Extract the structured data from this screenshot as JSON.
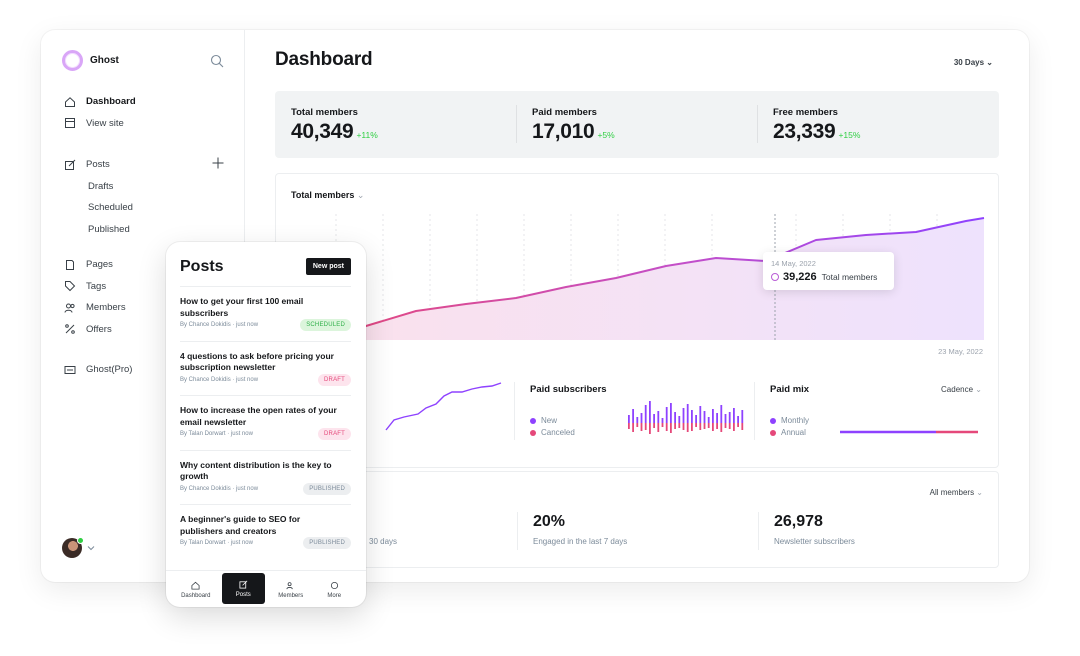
{
  "sidebar": {
    "brand": "Ghost",
    "items": [
      {
        "label": "Dashboard",
        "icon": "home-icon"
      },
      {
        "label": "View site",
        "icon": "window-icon"
      },
      {
        "label": "Posts",
        "icon": "edit-icon"
      },
      {
        "label": "Drafts"
      },
      {
        "label": "Scheduled"
      },
      {
        "label": "Published"
      },
      {
        "label": "Pages",
        "icon": "page-icon"
      },
      {
        "label": "Tags",
        "icon": "tag-icon"
      },
      {
        "label": "Members",
        "icon": "members-icon"
      },
      {
        "label": "Offers",
        "icon": "percent-icon"
      },
      {
        "label": "Ghost(Pro)",
        "icon": "card-icon"
      }
    ]
  },
  "header": {
    "title": "Dashboard",
    "range": "30 Days"
  },
  "stats": [
    {
      "label": "Total members",
      "value": "40,349",
      "change": "+11%"
    },
    {
      "label": "Paid members",
      "value": "17,010",
      "change": "+5%"
    },
    {
      "label": "Free members",
      "value": "23,339",
      "change": "+15%"
    }
  ],
  "chart": {
    "title": "Total members",
    "end_date": "23 May, 2022",
    "tooltip": {
      "date": "14 May, 2022",
      "value": "39,226",
      "label": "Total members"
    }
  },
  "subcharts": {
    "paid_subscribers": {
      "title": "Paid subscribers",
      "legend": [
        "New",
        "Canceled"
      ]
    },
    "paid_mix": {
      "title": "Paid mix",
      "legend": [
        "Monthly",
        "Annual"
      ],
      "filter": "Cadence"
    }
  },
  "bottom": {
    "filter": "All members",
    "stats": [
      {
        "value": "",
        "label": "30 days"
      },
      {
        "value": "20%",
        "label": "Engaged in the last 7 days"
      },
      {
        "value": "26,978",
        "label": "Newsletter subscribers"
      }
    ]
  },
  "mobile": {
    "title": "Posts",
    "new_post": "New post",
    "posts": [
      {
        "title": "How to get your first 100 email subscribers",
        "meta": "By Chance Dokidis · just now",
        "status": "SCHEDULED",
        "kind": "scheduled"
      },
      {
        "title": "4 questions to ask before pricing your subscription newsletter",
        "meta": "By Chance Dokidis · just now",
        "status": "DRAFT",
        "kind": "draft"
      },
      {
        "title": "How to increase the open rates of your email newsletter",
        "meta": "By Talan Dorwart · just now",
        "status": "DRAFT",
        "kind": "draft"
      },
      {
        "title": "Why content distribution is the key to growth",
        "meta": "By Chance Dokidis · just now",
        "status": "PUBLISHED",
        "kind": "published"
      },
      {
        "title": "A beginner's guide to SEO for publishers and creators",
        "meta": "By Talan Dorwart · just now",
        "status": "PUBLISHED",
        "kind": "published"
      }
    ],
    "tabs": [
      "Dashboard",
      "Posts",
      "Members",
      "More"
    ]
  },
  "colors": {
    "accent": "#b95dd6",
    "pink": "#e5487a",
    "purple": "#8e42ff",
    "positive": "#30cf43"
  }
}
